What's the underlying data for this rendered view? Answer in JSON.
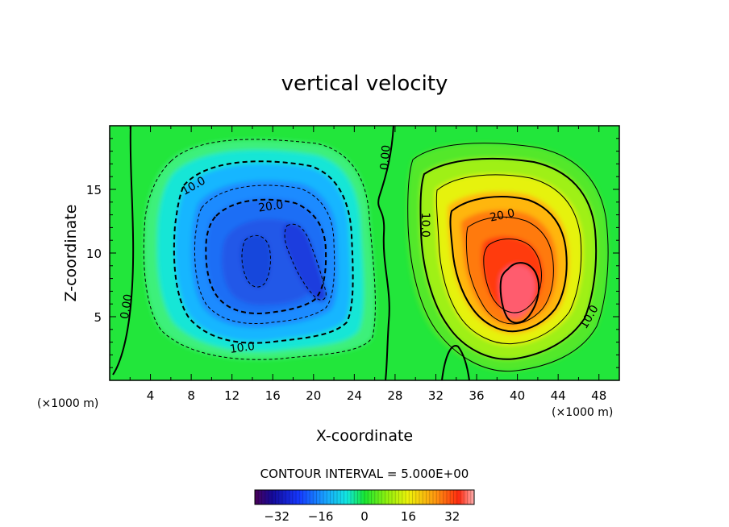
{
  "chart_data": {
    "type": "heatmap",
    "title": "vertical velocity",
    "xlabel": "X-coordinate",
    "ylabel": "Z-coordinate",
    "x_unit_left": "(×1000 m)",
    "x_unit_right": "(×1000 m)",
    "xlim": [
      0,
      50
    ],
    "ylim": [
      0,
      20
    ],
    "x_ticks": [
      4,
      8,
      12,
      16,
      20,
      24,
      28,
      32,
      36,
      40,
      44,
      48
    ],
    "y_ticks": [
      5,
      10,
      15
    ],
    "contour_interval_text": "CONTOUR INTERVAL = 5.000E+00",
    "contour_labels": [
      {
        "text": "0.00",
        "x": 1.6,
        "z": 5.8,
        "angle": -80
      },
      {
        "text": "10.0",
        "x": 8.2,
        "z": 15.3,
        "angle": -30
      },
      {
        "text": "20.0",
        "x": 15.8,
        "z": 13.7,
        "angle": -8
      },
      {
        "text": "10.0",
        "x": 13.0,
        "z": 2.6,
        "angle": -8
      },
      {
        "text": "0.00",
        "x": 27.0,
        "z": 17.5,
        "angle": -85
      },
      {
        "text": "10.0",
        "x": 31.0,
        "z": 12.2,
        "angle": 90
      },
      {
        "text": "20.0",
        "x": 38.5,
        "z": 13.0,
        "angle": -12
      },
      {
        "text": "10.0",
        "x": 47.0,
        "z": 5.0,
        "angle": -60
      }
    ],
    "extrema": [
      {
        "sign": "min",
        "x": 17.5,
        "z": 9.5,
        "value_approx": -30
      },
      {
        "sign": "max",
        "x": 40.0,
        "z": 7.0,
        "value_approx": 38
      }
    ],
    "colorbar": {
      "min": -40,
      "max": 40,
      "ticks": [
        -32,
        -16,
        0,
        16,
        32
      ],
      "tick_labels": [
        "−32",
        "−16",
        "0",
        "16",
        "32"
      ]
    },
    "colors": {
      "background": "#22e63b",
      "neg_extreme": "#1c4fe0",
      "pos_extreme": "#ff1a0d"
    }
  }
}
